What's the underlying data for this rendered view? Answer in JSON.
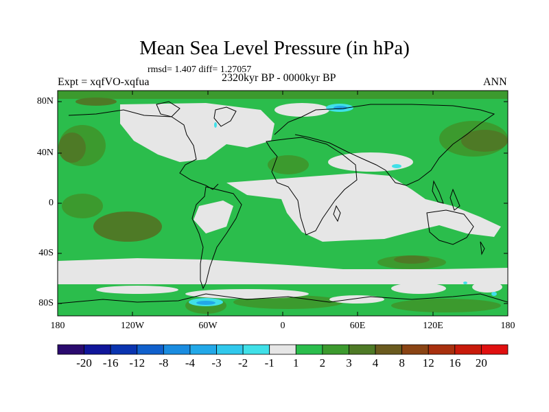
{
  "title": "Mean Sea Level Pressure (in hPa)",
  "stats": "rmsd= 1.407 diff= 1.27057",
  "experiment": "Expt = xqfVO-xqfua",
  "period": "2320kyr BP - 0000kyr BP",
  "season": "ANN",
  "y_axis_labels": [
    "80N",
    "40N",
    "0",
    "40S",
    "80S"
  ],
  "x_axis_labels": [
    "180",
    "120W",
    "60W",
    "0",
    "60E",
    "120E",
    "180"
  ],
  "colorbar": {
    "labels": [
      "-20",
      "-16",
      "-12",
      "-8",
      "-4",
      "-3",
      "-2",
      "-1",
      "1",
      "2",
      "3",
      "4",
      "8",
      "12",
      "16",
      "20"
    ],
    "colors": [
      "#2a0a6e",
      "#10169a",
      "#0a34b0",
      "#1060cc",
      "#1a8ce0",
      "#22a8e8",
      "#30c8ec",
      "#40e0e8",
      "#e6e6e6",
      "#2bbd4c",
      "#3c9a2e",
      "#4e7a26",
      "#6a5a1e",
      "#8a4414",
      "#a8300e",
      "#c81a0a",
      "#e01010"
    ]
  },
  "field_colors": {
    "ocean_base": "#2bbd4c",
    "near_zero": "#e6e6e6",
    "level_3": "#3c9a2e",
    "level_4": "#4e7a26",
    "level_8": "#6a5a1e",
    "neg_light": "#40e0e8",
    "neg_mid": "#22a8e8"
  }
}
